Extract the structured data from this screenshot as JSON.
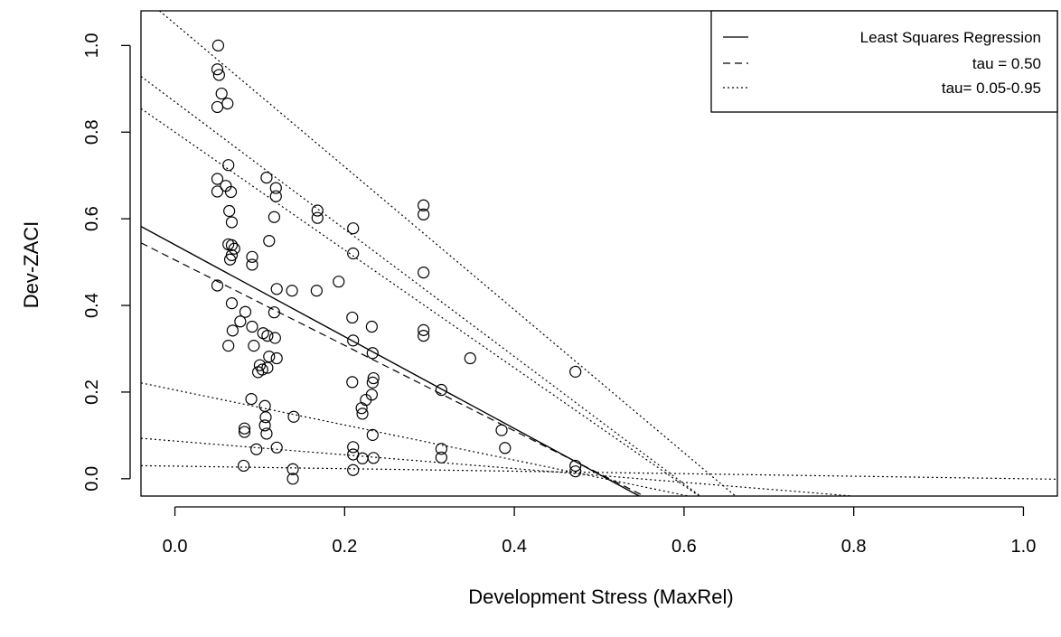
{
  "chart_data": {
    "type": "scatter",
    "title": "",
    "xlabel": "Development Stress (MaxRel)",
    "ylabel": "Dev-ZACI",
    "xlim": [
      -0.04,
      1.04
    ],
    "ylim": [
      -0.04,
      1.08
    ],
    "xticks": [
      "0.0",
      "0.2",
      "0.4",
      "0.6",
      "0.8",
      "1.0"
    ],
    "yticks": [
      "0.0",
      "0.2",
      "0.4",
      "0.6",
      "0.8",
      "1.0"
    ],
    "grid": false,
    "legend": {
      "position": "top-right",
      "entries": [
        {
          "label": "Least Squares Regression",
          "style": "solid"
        },
        {
          "label": "tau = 0.50",
          "style": "dashed"
        },
        {
          "label": "tau= 0.05-0.95",
          "style": "dotted"
        }
      ]
    },
    "points": [
      [
        0.051,
        1.0
      ],
      [
        0.05,
        0.945
      ],
      [
        0.052,
        0.932
      ],
      [
        0.055,
        0.889
      ],
      [
        0.05,
        0.858
      ],
      [
        0.062,
        0.866
      ],
      [
        0.063,
        0.724
      ],
      [
        0.05,
        0.692
      ],
      [
        0.05,
        0.663
      ],
      [
        0.06,
        0.676
      ],
      [
        0.066,
        0.662
      ],
      [
        0.064,
        0.618
      ],
      [
        0.067,
        0.592
      ],
      [
        0.063,
        0.541
      ],
      [
        0.067,
        0.539
      ],
      [
        0.07,
        0.531
      ],
      [
        0.065,
        0.506
      ],
      [
        0.067,
        0.516
      ],
      [
        0.05,
        0.446
      ],
      [
        0.067,
        0.405
      ],
      [
        0.068,
        0.342
      ],
      [
        0.063,
        0.307
      ],
      [
        0.077,
        0.363
      ],
      [
        0.083,
        0.385
      ],
      [
        0.091,
        0.512
      ],
      [
        0.091,
        0.494
      ],
      [
        0.091,
        0.351
      ],
      [
        0.093,
        0.307
      ],
      [
        0.1,
        0.262
      ],
      [
        0.098,
        0.246
      ],
      [
        0.103,
        0.252
      ],
      [
        0.104,
        0.336
      ],
      [
        0.109,
        0.33
      ],
      [
        0.108,
        0.695
      ],
      [
        0.119,
        0.671
      ],
      [
        0.119,
        0.652
      ],
      [
        0.117,
        0.604
      ],
      [
        0.111,
        0.549
      ],
      [
        0.12,
        0.438
      ],
      [
        0.117,
        0.384
      ],
      [
        0.118,
        0.325
      ],
      [
        0.111,
        0.282
      ],
      [
        0.109,
        0.256
      ],
      [
        0.12,
        0.278
      ],
      [
        0.09,
        0.184
      ],
      [
        0.106,
        0.168
      ],
      [
        0.107,
        0.142
      ],
      [
        0.106,
        0.123
      ],
      [
        0.108,
        0.104
      ],
      [
        0.096,
        0.068
      ],
      [
        0.082,
        0.108
      ],
      [
        0.082,
        0.116
      ],
      [
        0.081,
        0.03
      ],
      [
        0.12,
        0.072
      ],
      [
        0.14,
        0.143
      ],
      [
        0.138,
        0.434
      ],
      [
        0.139,
        0.022
      ],
      [
        0.139,
        0.0
      ],
      [
        0.167,
        0.434
      ],
      [
        0.168,
        0.619
      ],
      [
        0.168,
        0.602
      ],
      [
        0.193,
        0.455
      ],
      [
        0.21,
        0.578
      ],
      [
        0.21,
        0.52
      ],
      [
        0.209,
        0.372
      ],
      [
        0.21,
        0.319
      ],
      [
        0.209,
        0.223
      ],
      [
        0.21,
        0.073
      ],
      [
        0.21,
        0.056
      ],
      [
        0.21,
        0.02
      ],
      [
        0.221,
        0.15
      ],
      [
        0.22,
        0.163
      ],
      [
        0.225,
        0.182
      ],
      [
        0.221,
        0.047
      ],
      [
        0.232,
        0.351
      ],
      [
        0.233,
        0.29
      ],
      [
        0.234,
        0.232
      ],
      [
        0.233,
        0.222
      ],
      [
        0.232,
        0.194
      ],
      [
        0.233,
        0.101
      ],
      [
        0.234,
        0.048
      ],
      [
        0.293,
        0.631
      ],
      [
        0.293,
        0.61
      ],
      [
        0.293,
        0.476
      ],
      [
        0.293,
        0.343
      ],
      [
        0.293,
        0.33
      ],
      [
        0.314,
        0.205
      ],
      [
        0.314,
        0.069
      ],
      [
        0.314,
        0.049
      ],
      [
        0.348,
        0.278
      ],
      [
        0.385,
        0.112
      ],
      [
        0.389,
        0.071
      ],
      [
        0.472,
        0.247
      ],
      [
        0.472,
        0.03
      ],
      [
        0.472,
        0.017
      ]
    ],
    "lines": [
      {
        "name": "ls",
        "style": "solid",
        "intercept": 0.54,
        "slope": -1.06
      },
      {
        "name": "q50",
        "style": "dashed",
        "intercept": 0.505,
        "slope": -0.986
      },
      {
        "name": "q95",
        "style": "dotted",
        "intercept": 1.05,
        "slope": -1.65
      },
      {
        "name": "q90",
        "style": "dotted",
        "intercept": 0.87,
        "slope": -1.47
      },
      {
        "name": "q75",
        "style": "dotted",
        "intercept": 0.8,
        "slope": -1.36
      },
      {
        "name": "q25",
        "style": "dotted",
        "intercept": 0.205,
        "slope": -0.405
      },
      {
        "name": "q10",
        "style": "dotted",
        "intercept": 0.087,
        "slope": -0.159
      },
      {
        "name": "q05",
        "style": "dotted",
        "intercept": 0.029,
        "slope": -0.029
      }
    ]
  }
}
